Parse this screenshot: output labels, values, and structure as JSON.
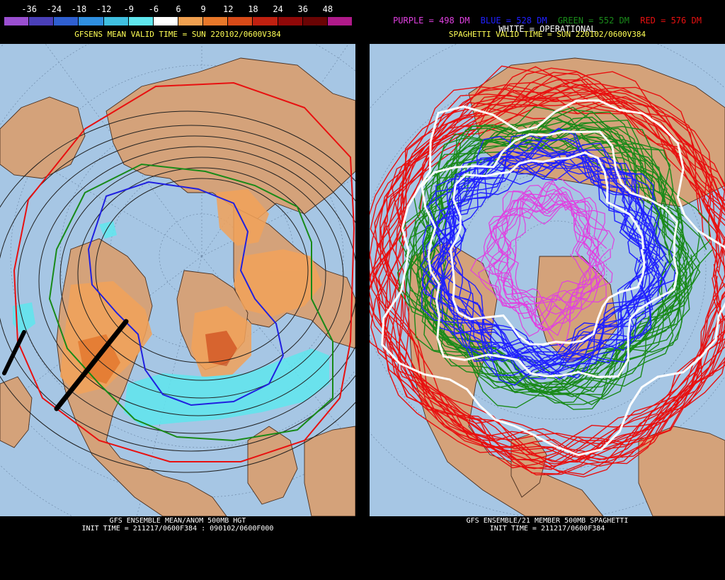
{
  "left": {
    "colorbar": {
      "labels": [
        "-36",
        "-24",
        "-18",
        "-12",
        "-9",
        "-6",
        "6",
        "9",
        "12",
        "18",
        "24",
        "36",
        "48"
      ],
      "colors": [
        "#9a4fd0",
        "#4a3fb8",
        "#2f5fd0",
        "#2f8fe0",
        "#3fbfe0",
        "#5fe6ee",
        "#ffffff",
        "#f0a050",
        "#e8782a",
        "#d84a18",
        "#c02010",
        "#900808",
        "#6a0404",
        "#b01a8a"
      ]
    },
    "valid_title": "GFSENS MEAN VALID TIME = SUN 220102/0600V384",
    "caption_line1": "GFS ENSEMBLE MEAN/ANOM 500MB HGT",
    "caption_line2": "INIT TIME = 211217/0600F384 : 090102/0600F000"
  },
  "right": {
    "legend": {
      "purple": "PURPLE = 498 DM",
      "blue": "BLUE = 528 DM",
      "green": "GREEN = 552 DM",
      "red": "RED = 576 DM",
      "white": "WHITE = OPERATIONAL"
    },
    "legend_colors": {
      "purple": "#e040e0",
      "blue": "#2020ff",
      "green": "#1a8a1a",
      "red": "#e81010",
      "white": "#ffffff"
    },
    "valid_title": "SPAGHETTI VALID TIME = SUN 220102/0600V384",
    "caption_line1": "GFS ENSEMBLE/21 MEMBER 500MB SPAGHETTI",
    "caption_line2": "INIT TIME = 211217/0600F384"
  },
  "map_colors": {
    "ocean": "#a6c6e4",
    "land": "#d4a27a",
    "coast": "#4a3020"
  }
}
